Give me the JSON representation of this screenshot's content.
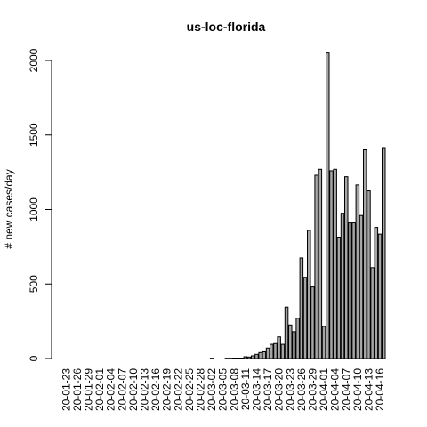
{
  "chart_data": {
    "type": "bar",
    "title": "us-loc-florida",
    "xlabel": "",
    "ylabel": "# new cases/day",
    "ylim": [
      0,
      2000
    ],
    "yticks": [
      0,
      500,
      1000,
      1500,
      2000
    ],
    "grid": false,
    "categories": [
      "20-01-23",
      "20-01-24",
      "20-01-25",
      "20-01-26",
      "20-01-27",
      "20-01-28",
      "20-01-29",
      "20-01-30",
      "20-01-31",
      "20-02-01",
      "20-02-02",
      "20-02-03",
      "20-02-04",
      "20-02-05",
      "20-02-06",
      "20-02-07",
      "20-02-08",
      "20-02-09",
      "20-02-10",
      "20-02-11",
      "20-02-12",
      "20-02-13",
      "20-02-14",
      "20-02-15",
      "20-02-16",
      "20-02-17",
      "20-02-18",
      "20-02-19",
      "20-02-20",
      "20-02-21",
      "20-02-22",
      "20-02-23",
      "20-02-24",
      "20-02-25",
      "20-02-26",
      "20-02-27",
      "20-02-28",
      "20-02-29",
      "20-03-01",
      "20-03-02",
      "20-03-03",
      "20-03-04",
      "20-03-05",
      "20-03-06",
      "20-03-07",
      "20-03-08",
      "20-03-09",
      "20-03-10",
      "20-03-11",
      "20-03-12",
      "20-03-13",
      "20-03-14",
      "20-03-15",
      "20-03-16",
      "20-03-17",
      "20-03-18",
      "20-03-19",
      "20-03-20",
      "20-03-21",
      "20-03-22",
      "20-03-23",
      "20-03-24",
      "20-03-25",
      "20-03-26",
      "20-03-27",
      "20-03-28",
      "20-03-29",
      "20-03-30",
      "20-03-31",
      "20-04-01",
      "20-04-02",
      "20-04-03",
      "20-04-04",
      "20-04-05",
      "20-04-06",
      "20-04-07",
      "20-04-08",
      "20-04-09",
      "20-04-10",
      "20-04-11",
      "20-04-12",
      "20-04-13",
      "20-04-14",
      "20-04-15",
      "20-04-16",
      "20-04-17"
    ],
    "tick_labels": [
      "20-01-23",
      "20-01-26",
      "20-01-29",
      "20-02-01",
      "20-02-04",
      "20-02-07",
      "20-02-10",
      "20-02-13",
      "20-02-16",
      "20-02-19",
      "20-02-22",
      "20-02-25",
      "20-02-28",
      "20-03-02",
      "20-03-05",
      "20-03-08",
      "20-03-11",
      "20-03-14",
      "20-03-17",
      "20-03-20",
      "20-03-23",
      "20-03-26",
      "20-03-29",
      "20-04-01",
      "20-04-04",
      "20-04-07",
      "20-04-10",
      "20-04-13",
      "20-04-16"
    ],
    "values": [
      0,
      0,
      0,
      0,
      0,
      0,
      0,
      0,
      0,
      0,
      0,
      0,
      0,
      0,
      0,
      0,
      0,
      0,
      0,
      0,
      0,
      0,
      0,
      0,
      0,
      0,
      0,
      0,
      0,
      0,
      0,
      0,
      0,
      0,
      0,
      0,
      0,
      0,
      0,
      2,
      0,
      0,
      0,
      2,
      2,
      3,
      3,
      3,
      12,
      10,
      18,
      28,
      40,
      45,
      70,
      95,
      100,
      145,
      95,
      345,
      225,
      180,
      270,
      675,
      545,
      860,
      480,
      1230,
      1270,
      215,
      2050,
      1260,
      1270,
      815,
      975,
      1220,
      910,
      910,
      1165,
      960,
      1400,
      1125,
      610,
      880,
      835,
      1415
    ],
    "bar_fill": "#a6a6a6",
    "bar_stroke": "#000000"
  }
}
